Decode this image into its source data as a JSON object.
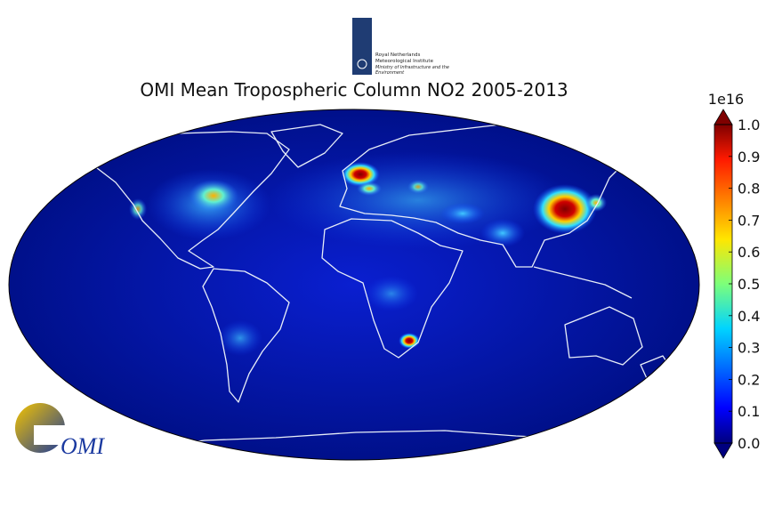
{
  "logo": {
    "line1": "Royal Netherlands",
    "line2": "Meteorological Institute",
    "line3": "Ministry of Infrastructure and the",
    "line4": "Environment"
  },
  "title": "OMI Mean Tropospheric Column NO2 2005-2013",
  "colorbar": {
    "multiplier": "1e16",
    "lim": [
      0,
      1
    ],
    "ticks": [
      {
        "value": 0,
        "label": "0.0"
      },
      {
        "value": 0.1,
        "label": "0.1"
      },
      {
        "value": 0.2,
        "label": "0.2"
      },
      {
        "value": 0.3,
        "label": "0.3"
      },
      {
        "value": 0.4,
        "label": "0.4"
      },
      {
        "value": 0.5,
        "label": "0.5"
      },
      {
        "value": 0.6,
        "label": "0.6"
      },
      {
        "value": 0.7,
        "label": "0.7"
      },
      {
        "value": 0.8,
        "label": "0.8"
      },
      {
        "value": 0.9,
        "label": "0.9"
      },
      {
        "value": 1,
        "label": "1.0"
      }
    ]
  },
  "omi_logo": "OMI"
}
